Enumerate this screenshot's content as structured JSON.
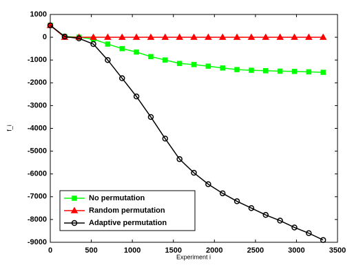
{
  "chart_data": {
    "type": "line",
    "xlabel": "Experiment i",
    "ylabel": "f_i",
    "x": [
      0,
      175,
      350,
      525,
      700,
      875,
      1050,
      1225,
      1400,
      1575,
      1750,
      1925,
      2100,
      2275,
      2450,
      2625,
      2800,
      2975,
      3150,
      3325
    ],
    "series": [
      {
        "name": "No permutation",
        "color": "#00ff00",
        "marker": "square",
        "values": [
          520,
          30,
          0,
          -80,
          -300,
          -500,
          -650,
          -850,
          -1000,
          -1150,
          -1200,
          -1270,
          -1350,
          -1420,
          -1450,
          -1470,
          -1490,
          -1500,
          -1520,
          -1540
        ]
      },
      {
        "name": "Random permutation",
        "color": "#ff0000",
        "marker": "triangle",
        "values": [
          520,
          0,
          0,
          0,
          0,
          0,
          0,
          0,
          0,
          0,
          0,
          0,
          0,
          0,
          0,
          0,
          0,
          0,
          0,
          0
        ]
      },
      {
        "name": "Adaptive permutation",
        "color": "#000000",
        "marker": "circle",
        "values": [
          520,
          30,
          -50,
          -300,
          -1000,
          -1800,
          -2600,
          -3500,
          -4450,
          -5350,
          -5950,
          -6450,
          -6850,
          -7200,
          -7500,
          -7800,
          -8050,
          -8350,
          -8600,
          -8900
        ]
      }
    ],
    "xlim": [
      0,
      3500
    ],
    "xticks": [
      0,
      500,
      1000,
      1500,
      2000,
      2500,
      3000,
      3500
    ],
    "ylim": [
      -9000,
      1000
    ],
    "yticks": [
      1000,
      0,
      -1000,
      -2000,
      -3000,
      -4000,
      -5000,
      -6000,
      -7000,
      -8000,
      -9000
    ],
    "legend": "lower left"
  }
}
